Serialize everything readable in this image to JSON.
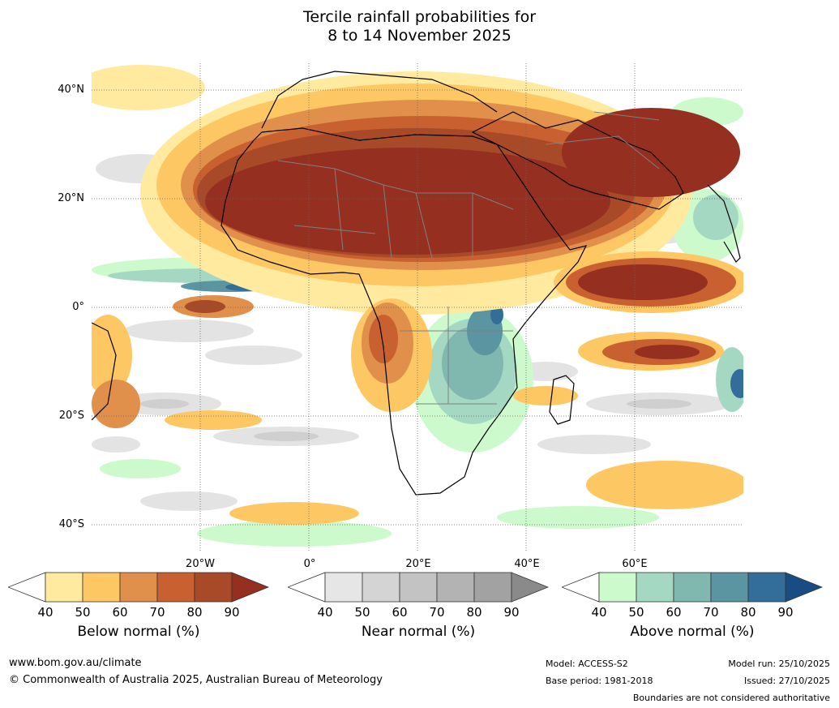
{
  "title": {
    "line1": "Tercile rainfall probabilities for",
    "line2": "8 to 14 November 2025"
  },
  "axes": {
    "lat_labels": [
      "40°N",
      "20°N",
      "0°",
      "20°S",
      "40°S"
    ],
    "lon_labels": [
      "20°W",
      "0°",
      "20°E",
      "40°E",
      "60°E"
    ]
  },
  "legends": [
    {
      "caption": "Below normal (%)",
      "ticks": [
        "40",
        "50",
        "60",
        "70",
        "80",
        "90"
      ],
      "colors": [
        "#ffffff",
        "#ffeaa0",
        "#fdc864",
        "#e0904a",
        "#c86030",
        "#a84a28",
        "#952f20"
      ]
    },
    {
      "caption": "Near normal (%)",
      "ticks": [
        "40",
        "50",
        "60",
        "70",
        "80",
        "90"
      ],
      "colors": [
        "#ffffff",
        "#e6e6e6",
        "#d4d4d4",
        "#c3c3c3",
        "#b3b3b3",
        "#a2a2a2",
        "#8a8a8a"
      ]
    },
    {
      "caption": "Above normal (%)",
      "ticks": [
        "40",
        "50",
        "60",
        "70",
        "80",
        "90"
      ],
      "colors": [
        "#ffffff",
        "#ccfacc",
        "#a4d8c2",
        "#80b8b0",
        "#5b95a2",
        "#336e9a",
        "#184c82"
      ]
    }
  ],
  "footer": {
    "website": "www.bom.gov.au/climate",
    "copyright": "© Commonwealth of Australia 2025, Australian Bureau of Meteorology",
    "model": "Model: ACCESS-S2",
    "base_period": "Base period: 1981-2018",
    "model_run": "Model run: 25/10/2025",
    "issued": "Issued: 27/10/2025",
    "disclaimer": "Boundaries are not considered authoritative"
  }
}
